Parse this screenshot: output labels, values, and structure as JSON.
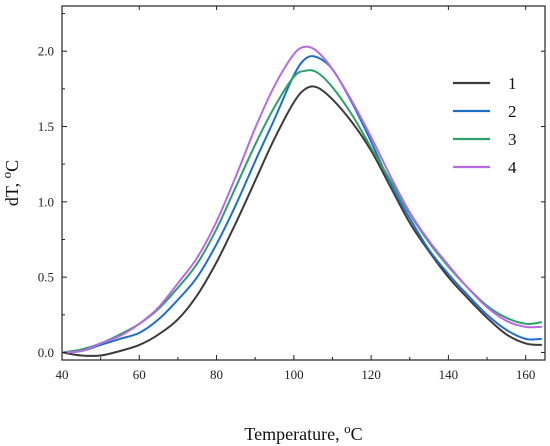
{
  "chart_data": {
    "type": "line",
    "xlabel": "Temperature, oC",
    "ylabel": "dT, oC",
    "xlim": [
      40,
      165
    ],
    "ylim": [
      -0.05,
      2.3
    ],
    "x_ticks": [
      40,
      60,
      80,
      100,
      120,
      140,
      160
    ],
    "y_ticks": [
      0.0,
      0.5,
      1.0,
      1.5,
      2.0
    ],
    "x_tick_labels": [
      "40",
      "60",
      "80",
      "100",
      "120",
      "140",
      "160"
    ],
    "y_tick_labels": [
      "0.0",
      "0.5",
      "1.0",
      "1.5",
      "2.0"
    ],
    "grid": false,
    "legend_position": "top-right",
    "series": [
      {
        "name": "1",
        "color": "#3b3b3b",
        "x": [
          40,
          45,
          50,
          55,
          60,
          65,
          70,
          75,
          80,
          85,
          90,
          95,
          100,
          103,
          106,
          110,
          115,
          120,
          125,
          130,
          135,
          140,
          145,
          150,
          155,
          160,
          164
        ],
        "y": [
          0.0,
          -0.02,
          -0.02,
          0.01,
          0.05,
          0.12,
          0.22,
          0.38,
          0.6,
          0.86,
          1.14,
          1.42,
          1.66,
          1.75,
          1.76,
          1.68,
          1.53,
          1.34,
          1.1,
          0.86,
          0.67,
          0.5,
          0.36,
          0.23,
          0.12,
          0.06,
          0.05
        ]
      },
      {
        "name": "2",
        "color": "#1f6fc8",
        "x": [
          40,
          45,
          50,
          55,
          60,
          65,
          70,
          75,
          80,
          85,
          90,
          95,
          100,
          103,
          106,
          110,
          115,
          120,
          125,
          130,
          135,
          140,
          145,
          150,
          155,
          160,
          164
        ],
        "y": [
          0.0,
          0.01,
          0.05,
          0.09,
          0.13,
          0.22,
          0.35,
          0.5,
          0.72,
          0.98,
          1.27,
          1.55,
          1.84,
          1.95,
          1.96,
          1.88,
          1.66,
          1.4,
          1.12,
          0.89,
          0.68,
          0.52,
          0.38,
          0.25,
          0.15,
          0.09,
          0.09
        ]
      },
      {
        "name": "3",
        "color": "#2ea06a",
        "x": [
          40,
          45,
          50,
          55,
          60,
          65,
          70,
          75,
          80,
          85,
          90,
          95,
          100,
          103,
          106,
          110,
          115,
          120,
          125,
          130,
          135,
          140,
          145,
          150,
          155,
          160,
          164
        ],
        "y": [
          0.0,
          0.02,
          0.06,
          0.12,
          0.19,
          0.29,
          0.43,
          0.59,
          0.82,
          1.1,
          1.38,
          1.63,
          1.83,
          1.87,
          1.86,
          1.76,
          1.58,
          1.36,
          1.14,
          0.92,
          0.73,
          0.57,
          0.43,
          0.31,
          0.23,
          0.19,
          0.2
        ]
      },
      {
        "name": "4",
        "color": "#b46ce0",
        "x": [
          40,
          45,
          50,
          55,
          60,
          65,
          70,
          75,
          80,
          85,
          90,
          95,
          100,
          103,
          106,
          110,
          115,
          120,
          125,
          130,
          135,
          140,
          145,
          150,
          155,
          160,
          164
        ],
        "y": [
          0.0,
          0.01,
          0.06,
          0.11,
          0.19,
          0.3,
          0.46,
          0.63,
          0.87,
          1.17,
          1.49,
          1.77,
          1.98,
          2.03,
          2.0,
          1.88,
          1.67,
          1.43,
          1.17,
          0.93,
          0.74,
          0.58,
          0.43,
          0.3,
          0.21,
          0.17,
          0.17
        ]
      }
    ]
  }
}
